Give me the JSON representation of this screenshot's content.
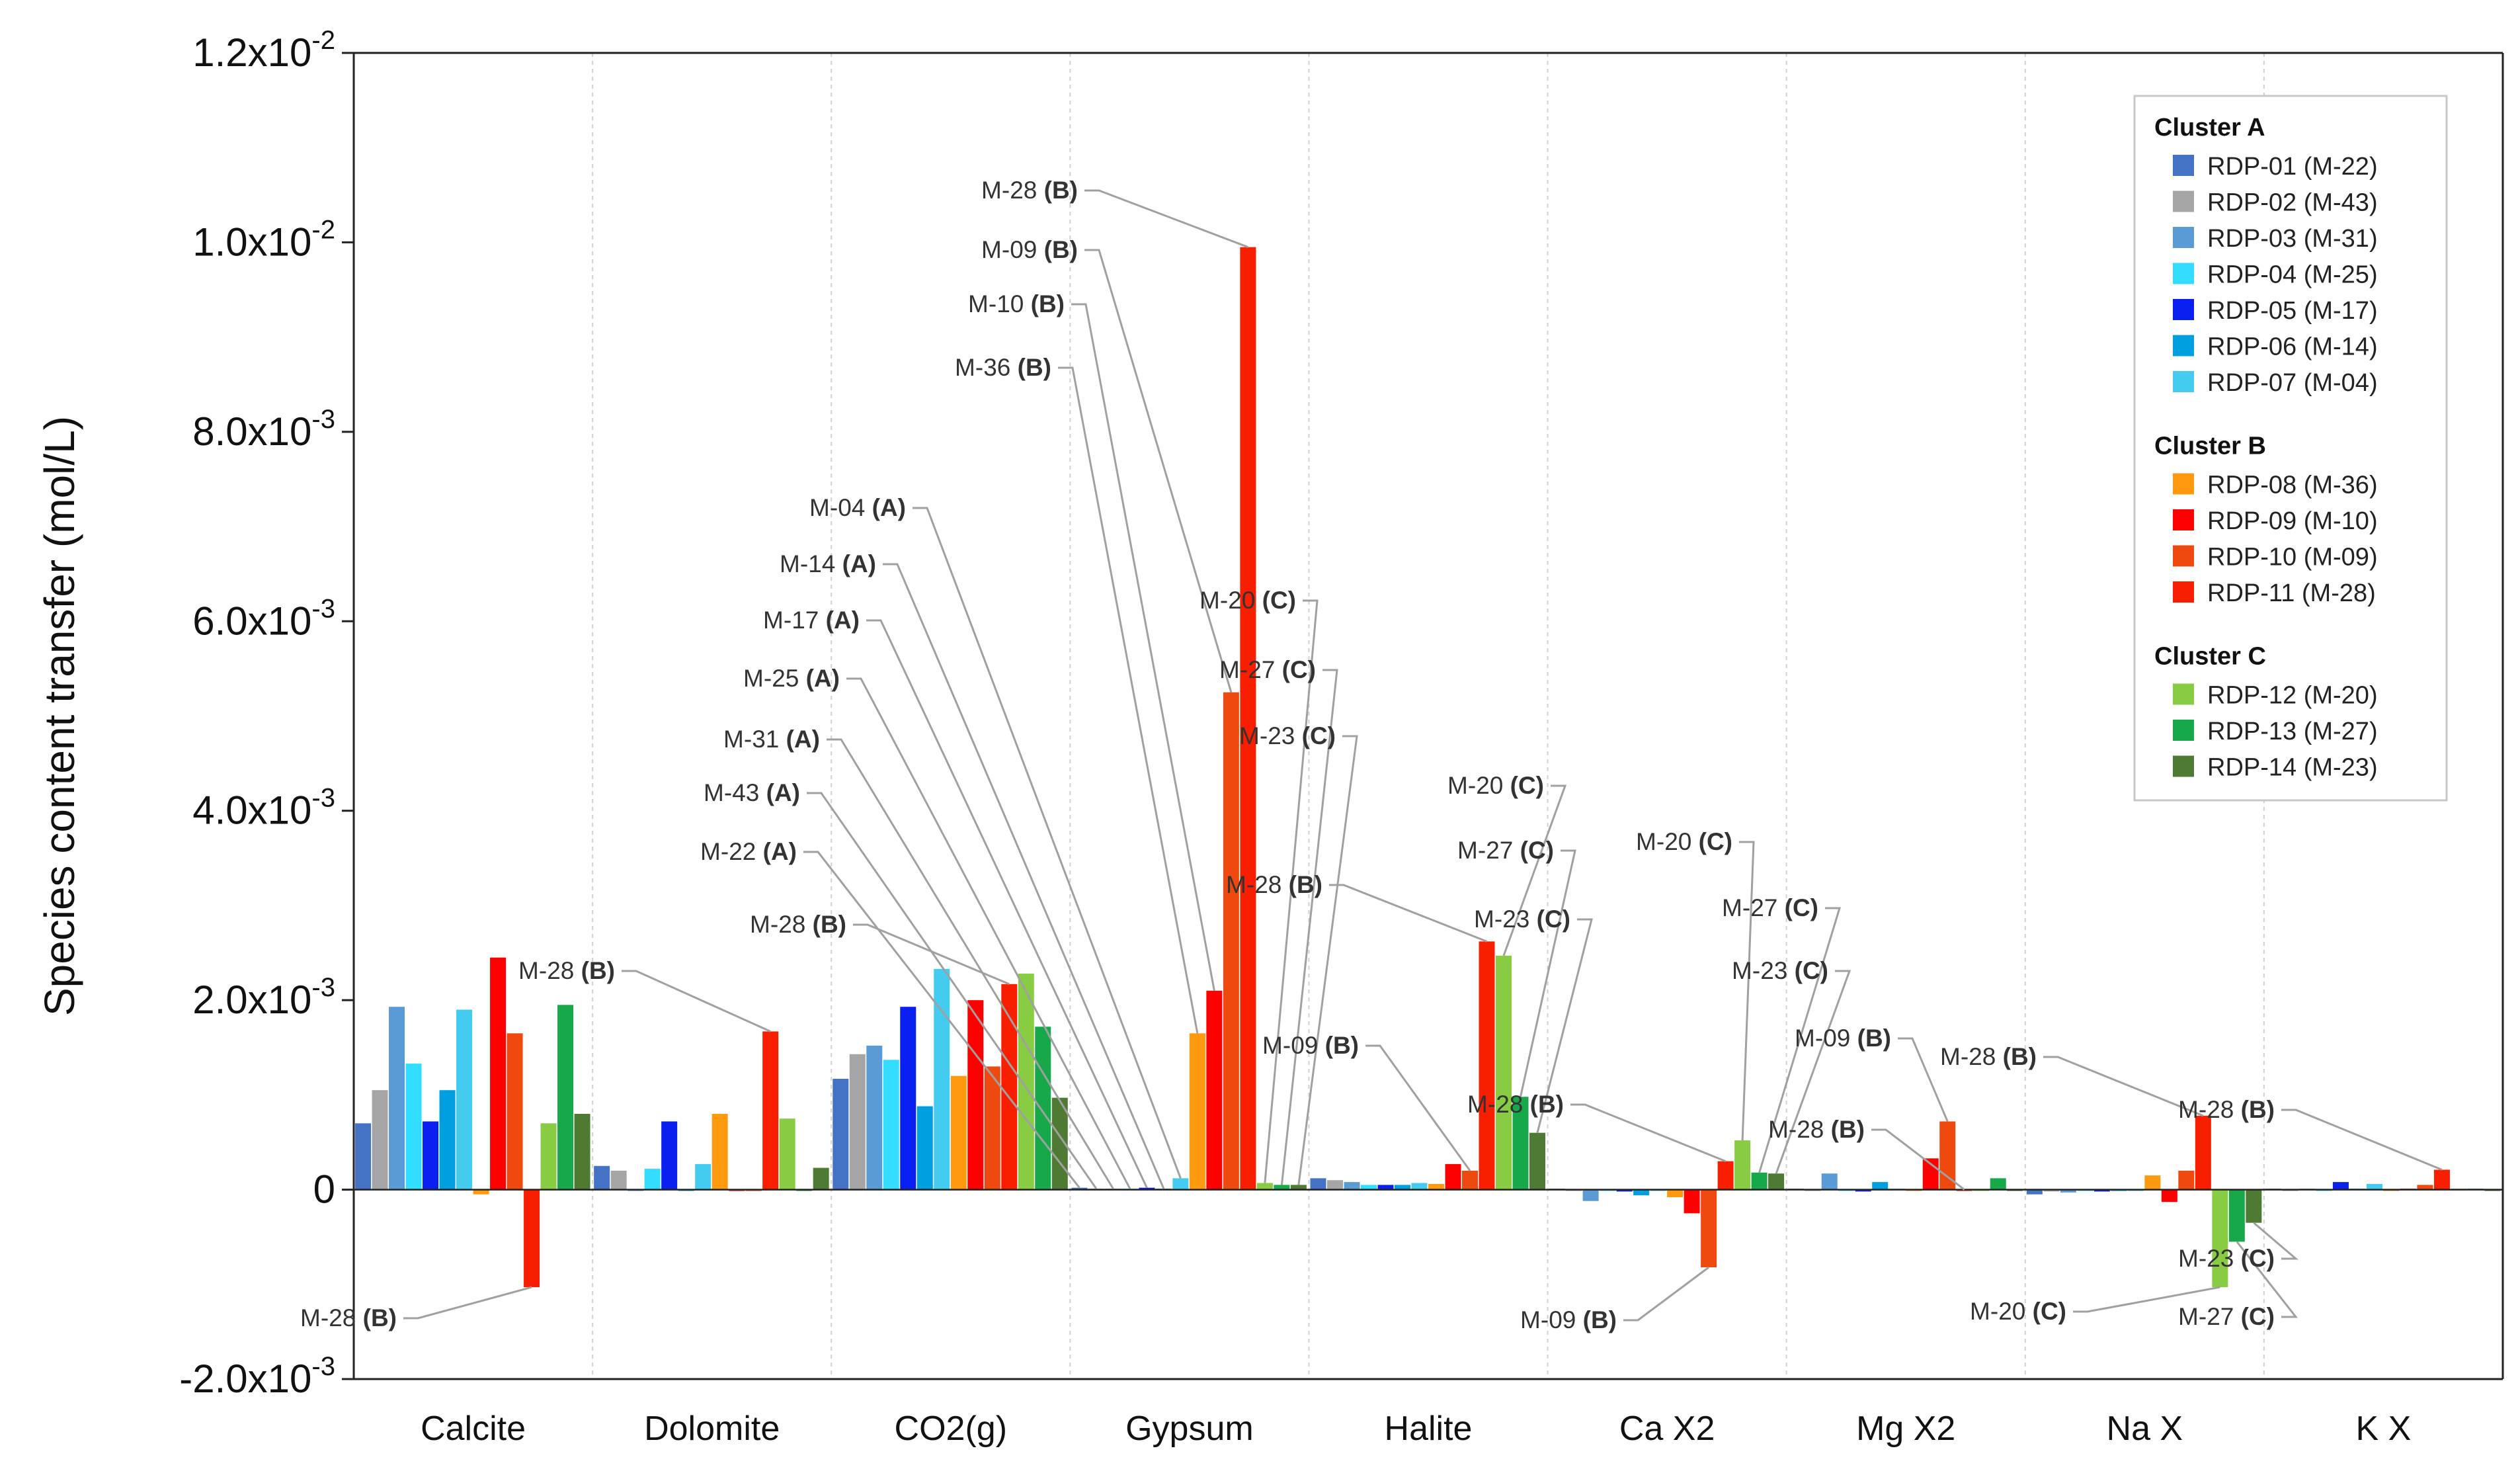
{
  "chart_data": {
    "type": "bar",
    "ylabel": "Species  content  transfer  (mol/L)",
    "ylim": [
      -0.002,
      0.012
    ],
    "yticks": [
      -0.002,
      0,
      0.002,
      0.004,
      0.006,
      0.008,
      0.01,
      0.012
    ],
    "ytick_labels": [
      {
        "base": "-2.0x10",
        "exp": "-3"
      },
      {
        "base": "0",
        "exp": ""
      },
      {
        "base": "2.0x10",
        "exp": "-3"
      },
      {
        "base": "4.0x10",
        "exp": "-3"
      },
      {
        "base": "6.0x10",
        "exp": "-3"
      },
      {
        "base": "8.0x10",
        "exp": "-3"
      },
      {
        "base": "1.0x10",
        "exp": "-2"
      },
      {
        "base": "1.2x10",
        "exp": "-2"
      }
    ],
    "categories": [
      "Calcite",
      "Dolomite",
      "CO2(g)",
      "Gypsum",
      "Halite",
      "Ca X2",
      "Mg X2",
      "Na X",
      "K X"
    ],
    "grid": "vertical-category-separators",
    "legend_position": "top-right",
    "legend_groups": [
      {
        "title": "Cluster A",
        "series": [
          0,
          1,
          2,
          3,
          4,
          5,
          6
        ]
      },
      {
        "title": "Cluster B",
        "series": [
          7,
          8,
          9,
          10
        ]
      },
      {
        "title": "Cluster C",
        "series": [
          11,
          12,
          13
        ]
      }
    ],
    "series": [
      {
        "name": "RDP-01 (M-22)",
        "color": "#4472C4",
        "values": [
          0.0007,
          0.00025,
          0.00117,
          2e-05,
          0.00012,
          1e-05,
          1e-05,
          -5e-05,
          1e-05
        ]
      },
      {
        "name": "RDP-02 (M-43)",
        "color": "#A5A5A5",
        "values": [
          0.00105,
          0.0002,
          0.00143,
          1e-05,
          0.0001,
          0.0,
          0.0,
          -2e-05,
          0.0
        ]
      },
      {
        "name": "RDP-03 (M-31)",
        "color": "#5B9BD5",
        "values": [
          0.00193,
          0.0,
          0.00152,
          1e-05,
          8e-05,
          -0.00012,
          0.00017,
          -3e-05,
          1e-05
        ]
      },
      {
        "name": "RDP-04 (M-25)",
        "color": "#33DDFF",
        "values": [
          0.00133,
          0.00022,
          0.00137,
          1e-05,
          5e-05,
          0.0,
          0.0,
          -1e-05,
          0.0
        ]
      },
      {
        "name": "RDP-05 (M-17)",
        "color": "#0A20F0",
        "values": [
          0.00072,
          0.00072,
          0.00193,
          2e-05,
          5e-05,
          -2e-05,
          -2e-05,
          -2e-05,
          8e-05
        ]
      },
      {
        "name": "RDP-06 (M-14)",
        "color": "#00A0E0",
        "values": [
          0.00105,
          0.0,
          0.00088,
          1e-05,
          5e-05,
          -6e-05,
          8e-05,
          0.0,
          1e-05
        ]
      },
      {
        "name": "RDP-07 (M-04)",
        "color": "#44CCF0",
        "values": [
          0.0019,
          0.00027,
          0.00233,
          0.00012,
          7e-05,
          0.0,
          1e-05,
          -1e-05,
          6e-05
        ]
      },
      {
        "name": "RDP-08 (M-36)",
        "color": "#FF9910",
        "values": [
          -5e-05,
          0.0008,
          0.0012,
          0.00165,
          6e-05,
          -8e-05,
          0.0,
          0.00015,
          0.0
        ]
      },
      {
        "name": "RDP-09 (M-10)",
        "color": "#FF0000",
        "values": [
          0.00245,
          0.0,
          0.002,
          0.0021,
          0.00027,
          -0.00025,
          0.00033,
          -0.00013,
          1e-05
        ]
      },
      {
        "name": "RDP-10 (M-09)",
        "color": "#EE4A10",
        "values": [
          0.00165,
          0.0,
          0.0013,
          0.00525,
          0.0002,
          -0.00082,
          0.00072,
          0.0002,
          5e-05
        ]
      },
      {
        "name": "RDP-11 (M-28)",
        "color": "#F81E00",
        "values": [
          -0.00103,
          0.00167,
          0.00217,
          0.00995,
          0.00262,
          0.0003,
          0.0,
          0.00078,
          0.00021
        ]
      },
      {
        "name": "RDP-12 (M-20)",
        "color": "#88CC44",
        "values": [
          0.0007,
          0.00075,
          0.00228,
          7e-05,
          0.00247,
          0.00052,
          0.0,
          -0.00103,
          1e-05
        ]
      },
      {
        "name": "RDP-13 (M-27)",
        "color": "#17A84A",
        "values": [
          0.00195,
          0.0,
          0.00172,
          5e-05,
          0.00098,
          0.00018,
          0.00012,
          -0.00055,
          1e-05
        ]
      },
      {
        "name": "RDP-14 (M-23)",
        "color": "#4F7A33",
        "values": [
          0.0008,
          0.00023,
          0.00097,
          5e-05,
          0.0006,
          0.00017,
          0.0,
          -0.00035,
          0.0
        ]
      }
    ],
    "annotations": [
      {
        "text": "M-28 (B)",
        "series": 10,
        "category": 0
      },
      {
        "text": "M-28 (B)",
        "series": 10,
        "category": 1
      },
      {
        "text": "M-28 (B)",
        "series": 10,
        "category": 2
      },
      {
        "text": "M-28 (B)",
        "series": 10,
        "category": 3
      },
      {
        "text": "M-09 (B)",
        "series": 9,
        "category": 3
      },
      {
        "text": "M-10 (B)",
        "series": 8,
        "category": 3
      },
      {
        "text": "M-36 (B)",
        "series": 7,
        "category": 3
      },
      {
        "text": "M-04 (A)",
        "series": 6,
        "category": 3
      },
      {
        "text": "M-14 (A)",
        "series": 5,
        "category": 3
      },
      {
        "text": "M-17 (A)",
        "series": 4,
        "category": 3
      },
      {
        "text": "M-25 (A)",
        "series": 3,
        "category": 3
      },
      {
        "text": "M-31 (A)",
        "series": 2,
        "category": 3
      },
      {
        "text": "M-43 (A)",
        "series": 1,
        "category": 3
      },
      {
        "text": "M-22 (A)",
        "series": 0,
        "category": 3
      },
      {
        "text": "M-20 (C)",
        "series": 11,
        "category": 3
      },
      {
        "text": "M-27 (C)",
        "series": 12,
        "category": 3
      },
      {
        "text": "M-23 (C)",
        "series": 13,
        "category": 3
      },
      {
        "text": "M-28 (B)",
        "series": 10,
        "category": 4
      },
      {
        "text": "M-09 (B)",
        "series": 9,
        "category": 4
      },
      {
        "text": "M-20 (C)",
        "series": 11,
        "category": 4
      },
      {
        "text": "M-27 (C)",
        "series": 12,
        "category": 4
      },
      {
        "text": "M-23 (C)",
        "series": 13,
        "category": 4
      },
      {
        "text": "M-28 (B)",
        "series": 10,
        "category": 5
      },
      {
        "text": "M-09 (B)",
        "series": 9,
        "category": 5
      },
      {
        "text": "M-20 (C)",
        "series": 11,
        "category": 5
      },
      {
        "text": "M-27 (C)",
        "series": 12,
        "category": 5
      },
      {
        "text": "M-23 (C)",
        "series": 13,
        "category": 5
      },
      {
        "text": "M-28 (B)",
        "series": 10,
        "category": 6
      },
      {
        "text": "M-09 (B)",
        "series": 9,
        "category": 6
      },
      {
        "text": "M-28 (B)",
        "series": 10,
        "category": 7
      },
      {
        "text": "M-20 (C)",
        "series": 11,
        "category": 7
      },
      {
        "text": "M-27 (C)",
        "series": 12,
        "category": 7
      },
      {
        "text": "M-23 (C)",
        "series": 13,
        "category": 7
      },
      {
        "text": "M-28 (B)",
        "series": 10,
        "category": 8
      }
    ]
  }
}
